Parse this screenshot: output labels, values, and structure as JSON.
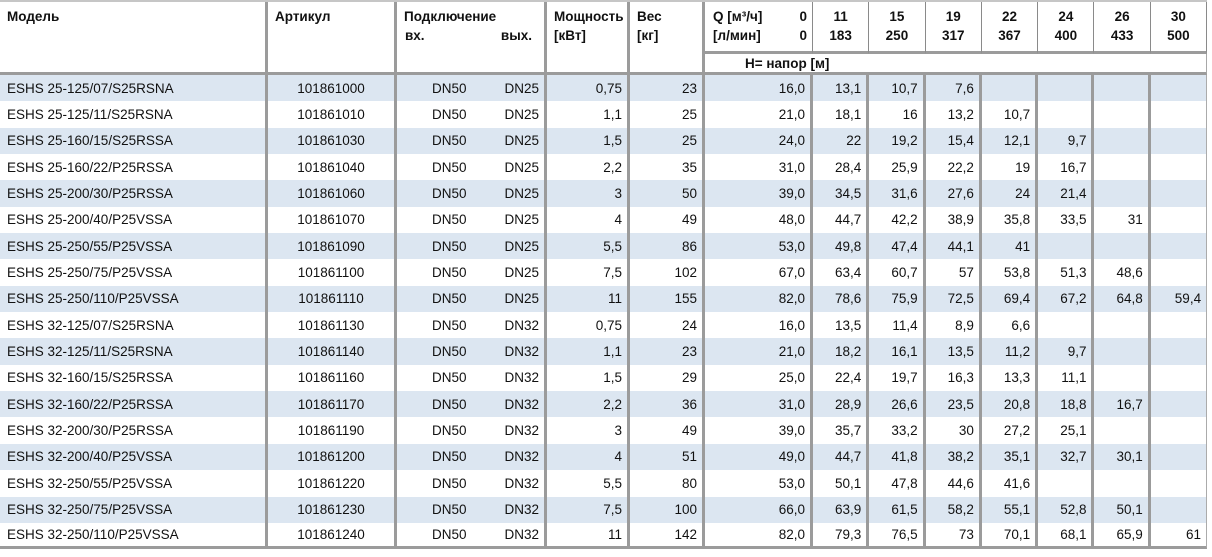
{
  "header": {
    "model": "Модель",
    "article": "Артикул",
    "connection": "Подключение",
    "connection_in": "вх.",
    "connection_out": "вых.",
    "power_line1": "Мощность",
    "power_line2": "[кВт]",
    "weight_line1": "Вес",
    "weight_line2": "[кг]",
    "q_line1_label": "Q [м³/ч]",
    "q_line1_value": "0",
    "q_line2_label": "[л/мин]",
    "q_line2_value": "0",
    "head_row_label": "H= напор [м]",
    "q_columns": [
      {
        "m3h": "11",
        "lmin": "183"
      },
      {
        "m3h": "15",
        "lmin": "250"
      },
      {
        "m3h": "19",
        "lmin": "317"
      },
      {
        "m3h": "22",
        "lmin": "367"
      },
      {
        "m3h": "24",
        "lmin": "400"
      },
      {
        "m3h": "26",
        "lmin": "433"
      },
      {
        "m3h": "30",
        "lmin": "500"
      }
    ]
  },
  "colors": {
    "zebra_row": "#dce6f1",
    "grid_border": "#9b9b9b",
    "text": "#111111"
  },
  "rows": [
    {
      "model": "ESHS 25-125/07/S25RSNA",
      "article": "101861000",
      "inlet": "DN50",
      "outlet": "DN25",
      "power": "0,75",
      "weight": "23",
      "heads": [
        "16,0",
        "13,1",
        "10,7",
        "7,6",
        "",
        "",
        "",
        ""
      ]
    },
    {
      "model": "ESHS 25-125/11/S25RSNA",
      "article": "101861010",
      "inlet": "DN50",
      "outlet": "DN25",
      "power": "1,1",
      "weight": "25",
      "heads": [
        "21,0",
        "18,1",
        "16",
        "13,2",
        "10,7",
        "",
        "",
        ""
      ]
    },
    {
      "model": "ESHS 25-160/15/S25RSSA",
      "article": "101861030",
      "inlet": "DN50",
      "outlet": "DN25",
      "power": "1,5",
      "weight": "25",
      "heads": [
        "24,0",
        "22",
        "19,2",
        "15,4",
        "12,1",
        "9,7",
        "",
        ""
      ]
    },
    {
      "model": "ESHS 25-160/22/P25RSSA",
      "article": "101861040",
      "inlet": "DN50",
      "outlet": "DN25",
      "power": "2,2",
      "weight": "35",
      "heads": [
        "31,0",
        "28,4",
        "25,9",
        "22,2",
        "19",
        "16,7",
        "",
        ""
      ]
    },
    {
      "model": "ESHS 25-200/30/P25RSSA",
      "article": "101861060",
      "inlet": "DN50",
      "outlet": "DN25",
      "power": "3",
      "weight": "50",
      "heads": [
        "39,0",
        "34,5",
        "31,6",
        "27,6",
        "24",
        "21,4",
        "",
        ""
      ]
    },
    {
      "model": "ESHS 25-200/40/P25VSSA",
      "article": "101861070",
      "inlet": "DN50",
      "outlet": "DN25",
      "power": "4",
      "weight": "49",
      "heads": [
        "48,0",
        "44,7",
        "42,2",
        "38,9",
        "35,8",
        "33,5",
        "31",
        ""
      ]
    },
    {
      "model": "ESHS 25-250/55/P25VSSA",
      "article": "101861090",
      "inlet": "DN50",
      "outlet": "DN25",
      "power": "5,5",
      "weight": "86",
      "heads": [
        "53,0",
        "49,8",
        "47,4",
        "44,1",
        "41",
        "",
        "",
        ""
      ]
    },
    {
      "model": "ESHS 25-250/75/P25VSSA",
      "article": "101861100",
      "inlet": "DN50",
      "outlet": "DN25",
      "power": "7,5",
      "weight": "102",
      "heads": [
        "67,0",
        "63,4",
        "60,7",
        "57",
        "53,8",
        "51,3",
        "48,6",
        ""
      ]
    },
    {
      "model": "ESHS 25-250/110/P25VSSA",
      "article": "101861110",
      "inlet": "DN50",
      "outlet": "DN25",
      "power": "11",
      "weight": "155",
      "heads": [
        "82,0",
        "78,6",
        "75,9",
        "72,5",
        "69,4",
        "67,2",
        "64,8",
        "59,4"
      ]
    },
    {
      "model": "ESHS 32-125/07/S25RSNA",
      "article": "101861130",
      "inlet": "DN50",
      "outlet": "DN32",
      "power": "0,75",
      "weight": "24",
      "heads": [
        "16,0",
        "13,5",
        "11,4",
        "8,9",
        "6,6",
        "",
        "",
        ""
      ]
    },
    {
      "model": "ESHS 32-125/11/S25RSNA",
      "article": "101861140",
      "inlet": "DN50",
      "outlet": "DN32",
      "power": "1,1",
      "weight": "23",
      "heads": [
        "21,0",
        "18,2",
        "16,1",
        "13,5",
        "11,2",
        "9,7",
        "",
        ""
      ]
    },
    {
      "model": "ESHS 32-160/15/S25RSSA",
      "article": "101861160",
      "inlet": "DN50",
      "outlet": "DN32",
      "power": "1,5",
      "weight": "29",
      "heads": [
        "25,0",
        "22,4",
        "19,7",
        "16,3",
        "13,3",
        "11,1",
        "",
        ""
      ]
    },
    {
      "model": "ESHS 32-160/22/P25RSSA",
      "article": "101861170",
      "inlet": "DN50",
      "outlet": "DN32",
      "power": "2,2",
      "weight": "36",
      "heads": [
        "31,0",
        "28,9",
        "26,6",
        "23,5",
        "20,8",
        "18,8",
        "16,7",
        ""
      ]
    },
    {
      "model": "ESHS 32-200/30/P25RSSA",
      "article": "101861190",
      "inlet": "DN50",
      "outlet": "DN32",
      "power": "3",
      "weight": "49",
      "heads": [
        "39,0",
        "35,7",
        "33,2",
        "30",
        "27,2",
        "25,1",
        "",
        ""
      ]
    },
    {
      "model": "ESHS 32-200/40/P25VSSA",
      "article": "101861200",
      "inlet": "DN50",
      "outlet": "DN32",
      "power": "4",
      "weight": "51",
      "heads": [
        "49,0",
        "44,7",
        "41,8",
        "38,2",
        "35,1",
        "32,7",
        "30,1",
        ""
      ]
    },
    {
      "model": "ESHS 32-250/55/P25VSSA",
      "article": "101861220",
      "inlet": "DN50",
      "outlet": "DN32",
      "power": "5,5",
      "weight": "80",
      "heads": [
        "53,0",
        "50,1",
        "47,8",
        "44,6",
        "41,6",
        "",
        "",
        ""
      ]
    },
    {
      "model": "ESHS 32-250/75/P25VSSA",
      "article": "101861230",
      "inlet": "DN50",
      "outlet": "DN32",
      "power": "7,5",
      "weight": "100",
      "heads": [
        "66,0",
        "63,9",
        "61,5",
        "58,2",
        "55,1",
        "52,8",
        "50,1",
        ""
      ]
    },
    {
      "model": "ESHS 32-250/110/P25VSSA",
      "article": "101861240",
      "inlet": "DN50",
      "outlet": "DN32",
      "power": "11",
      "weight": "142",
      "heads": [
        "82,0",
        "79,3",
        "76,5",
        "73",
        "70,1",
        "68,1",
        "65,9",
        "61"
      ]
    }
  ]
}
